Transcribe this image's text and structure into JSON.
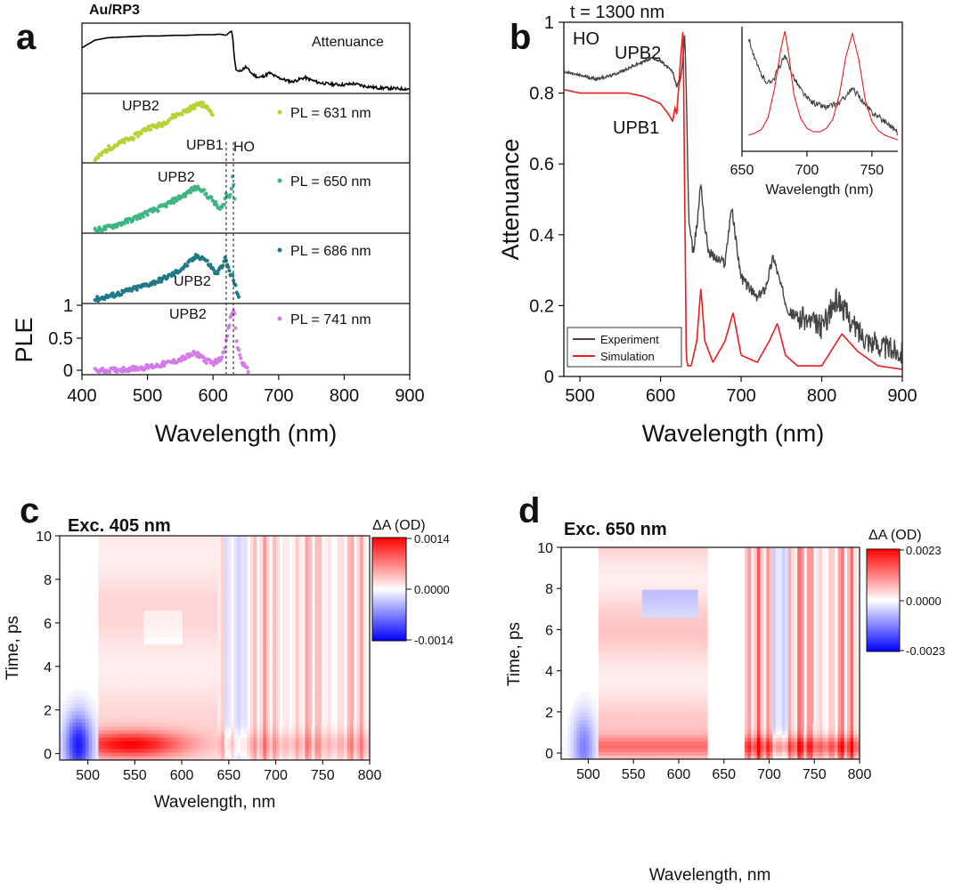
{
  "chart_data": [
    {
      "panel": "a",
      "type": "scatter",
      "title": "Au/RP3",
      "xlabel": "Wavelength (nm)",
      "ylabel": "PLE",
      "xlim": [
        400,
        900
      ],
      "xticks": [
        "400",
        "500",
        "600",
        "700",
        "800",
        "900"
      ],
      "yticks_bottom": [
        "0",
        "0.5",
        "1"
      ],
      "colors": {
        "attenuance": "#000000",
        "pl631": "#b5d334",
        "pl650": "#3eb582",
        "pl686": "#1f7a84",
        "pl741": "#d37be8"
      },
      "series": [
        {
          "name": "Attenuance",
          "label": "Attenuance",
          "x": [
            400,
            420,
            440,
            460,
            480,
            500,
            520,
            540,
            560,
            580,
            600,
            610,
            620,
            625,
            628,
            630,
            632,
            635,
            640,
            650,
            660,
            670,
            680,
            686,
            695,
            710,
            720,
            740,
            760,
            780,
            800,
            815,
            830,
            850,
            870,
            900
          ],
          "y": [
            0.72,
            0.85,
            0.89,
            0.9,
            0.91,
            0.92,
            0.92,
            0.93,
            0.93,
            0.94,
            0.94,
            0.95,
            0.93,
            0.98,
            1.0,
            0.9,
            0.6,
            0.35,
            0.32,
            0.4,
            0.28,
            0.22,
            0.26,
            0.3,
            0.24,
            0.18,
            0.15,
            0.22,
            0.14,
            0.11,
            0.1,
            0.12,
            0.08,
            0.05,
            0.04,
            0.03
          ]
        },
        {
          "name": "PL = 631 nm",
          "label": "PL = 631 nm",
          "annotation": "UPB2",
          "x": [
            420,
            440,
            460,
            480,
            500,
            520,
            540,
            555,
            565,
            575,
            580,
            590,
            600
          ],
          "y": [
            0.0,
            0.2,
            0.3,
            0.4,
            0.55,
            0.6,
            0.75,
            0.82,
            0.88,
            0.93,
            0.98,
            0.9,
            0.8
          ]
        },
        {
          "name": "PL = 650 nm",
          "label": "PL = 650 nm",
          "annotations": [
            "UPB2",
            "UPB1",
            "HO"
          ],
          "x": [
            420,
            440,
            460,
            480,
            500,
            520,
            540,
            560,
            570,
            580,
            590,
            600,
            610,
            615,
            620,
            625,
            628,
            630,
            633
          ],
          "y": [
            0.0,
            0.05,
            0.12,
            0.2,
            0.3,
            0.38,
            0.5,
            0.62,
            0.7,
            0.72,
            0.6,
            0.5,
            0.35,
            0.4,
            0.6,
            0.55,
            0.7,
            1.0,
            0.5
          ]
        },
        {
          "name": "PL = 686 nm",
          "label": "PL = 686 nm",
          "annotation": "UPB2",
          "x": [
            420,
            450,
            480,
            500,
            520,
            540,
            560,
            575,
            585,
            595,
            605,
            612,
            618,
            622,
            626,
            630,
            635,
            640
          ],
          "y": [
            0.02,
            0.1,
            0.2,
            0.27,
            0.35,
            0.45,
            0.6,
            0.75,
            0.72,
            0.6,
            0.45,
            0.55,
            0.7,
            0.6,
            0.45,
            0.4,
            0.2,
            0.05
          ]
        },
        {
          "name": "PL = 741 nm",
          "label": "PL = 741 nm",
          "annotation": "UPB2",
          "x": [
            420,
            450,
            480,
            500,
            520,
            540,
            560,
            570,
            580,
            590,
            600,
            610,
            615,
            620,
            625,
            628,
            630,
            633,
            636,
            640,
            645,
            650,
            655
          ],
          "y": [
            0.02,
            0.03,
            0.06,
            0.08,
            0.12,
            0.17,
            0.25,
            0.3,
            0.28,
            0.18,
            0.15,
            0.2,
            0.3,
            0.5,
            0.8,
            0.95,
            1.0,
            0.95,
            0.5,
            0.3,
            0.15,
            0.05,
            0.02
          ]
        }
      ]
    },
    {
      "panel": "b",
      "type": "line",
      "title": "t = 1300 nm",
      "xlabel": "Wavelength (nm)",
      "ylabel": "Attenuance",
      "xlim": [
        480,
        900
      ],
      "ylim": [
        0,
        1
      ],
      "xticks": [
        "500",
        "600",
        "700",
        "800",
        "900"
      ],
      "yticks": [
        "0",
        "0.2",
        "0.4",
        "0.6",
        "0.8",
        "1"
      ],
      "annotations": [
        "UPB2",
        "UPB1",
        "HO"
      ],
      "legend": [
        "Experiment",
        "Simulation"
      ],
      "colors": {
        "experiment": "#444444",
        "simulation": "#ee1c1c"
      },
      "series": [
        {
          "name": "Experiment",
          "x": [
            480,
            500,
            520,
            540,
            560,
            580,
            590,
            600,
            610,
            615,
            620,
            625,
            628,
            630,
            632,
            635,
            640,
            645,
            650,
            655,
            660,
            670,
            680,
            688,
            695,
            700,
            720,
            730,
            740,
            750,
            760,
            780,
            800,
            820,
            840,
            860,
            880,
            900
          ],
          "y": [
            0.86,
            0.85,
            0.84,
            0.85,
            0.87,
            0.89,
            0.9,
            0.89,
            0.87,
            0.86,
            0.82,
            0.84,
            0.9,
            0.97,
            0.8,
            0.45,
            0.35,
            0.42,
            0.55,
            0.42,
            0.35,
            0.33,
            0.32,
            0.48,
            0.36,
            0.28,
            0.22,
            0.25,
            0.34,
            0.25,
            0.18,
            0.16,
            0.14,
            0.22,
            0.14,
            0.1,
            0.08,
            0.07
          ]
        },
        {
          "name": "Simulation",
          "x": [
            480,
            500,
            520,
            540,
            560,
            580,
            590,
            600,
            610,
            615,
            618,
            620,
            622,
            625,
            628,
            630,
            632,
            634,
            638,
            645,
            650,
            655,
            665,
            680,
            690,
            700,
            720,
            735,
            745,
            755,
            770,
            800,
            825,
            845,
            870,
            900
          ],
          "y": [
            0.81,
            0.8,
            0.8,
            0.8,
            0.8,
            0.79,
            0.78,
            0.77,
            0.74,
            0.72,
            0.76,
            0.74,
            0.8,
            0.9,
            0.98,
            0.5,
            0.05,
            0.03,
            0.03,
            0.1,
            0.25,
            0.1,
            0.04,
            0.1,
            0.18,
            0.06,
            0.04,
            0.1,
            0.15,
            0.06,
            0.03,
            0.03,
            0.12,
            0.07,
            0.03,
            0.02
          ]
        }
      ],
      "inset": {
        "xlabel": "Wavelength (nm)",
        "xlim": [
          650,
          770
        ],
        "xticks": [
          "650",
          "700",
          "750"
        ],
        "series": [
          {
            "name": "Experiment",
            "x": [
              655,
              660,
              665,
              670,
              675,
              680,
              683,
              686,
              690,
              695,
              700,
              705,
              710,
              715,
              720,
              725,
              730,
              735,
              740,
              745,
              750,
              755,
              760,
              765,
              770
            ],
            "y": [
              0.95,
              0.75,
              0.62,
              0.55,
              0.6,
              0.72,
              0.78,
              0.7,
              0.6,
              0.5,
              0.42,
              0.38,
              0.36,
              0.34,
              0.36,
              0.38,
              0.44,
              0.5,
              0.44,
              0.36,
              0.3,
              0.26,
              0.22,
              0.18,
              0.12
            ]
          },
          {
            "name": "Simulation",
            "x": [
              655,
              660,
              665,
              670,
              675,
              680,
              683,
              686,
              690,
              695,
              700,
              705,
              710,
              715,
              720,
              725,
              730,
              735,
              740,
              745,
              750,
              755,
              760,
              765,
              770
            ],
            "y": [
              0.1,
              0.12,
              0.15,
              0.25,
              0.5,
              0.85,
              1.0,
              0.8,
              0.45,
              0.25,
              0.16,
              0.13,
              0.13,
              0.16,
              0.24,
              0.45,
              0.78,
              0.98,
              0.75,
              0.4,
              0.22,
              0.14,
              0.1,
              0.08,
              0.06
            ]
          }
        ]
      }
    },
    {
      "panel": "c",
      "type": "heatmap",
      "title": "Exc. 405 nm",
      "xlabel": "Wavelength, nm",
      "ylabel": "Time, ps",
      "xlim": [
        470,
        800
      ],
      "ylim": [
        -0.3,
        10
      ],
      "xticks": [
        "500",
        "550",
        "600",
        "650",
        "700",
        "750",
        "800"
      ],
      "yticks": [
        "0",
        "2",
        "4",
        "6",
        "8",
        "10"
      ],
      "colorbar": {
        "label": "ΔA (OD)",
        "max": "0.0014",
        "mid": "0.0000",
        "min": "-0.0014"
      },
      "features": [
        {
          "x": 490,
          "t": 0.4,
          "sign": "negative"
        },
        {
          "x": 545,
          "t": 0.4,
          "sign": "positive"
        },
        {
          "x": 700,
          "t": 5,
          "sign": "positive stripes"
        }
      ]
    },
    {
      "panel": "d",
      "type": "heatmap",
      "title": "Exc. 650 nm",
      "xlabel": "Wavelength, nm",
      "ylabel": "Time, ps",
      "xlim": [
        470,
        800
      ],
      "ylim": [
        -0.3,
        10
      ],
      "xticks": [
        "500",
        "550",
        "600",
        "650",
        "700",
        "750",
        "800"
      ],
      "yticks": [
        "0",
        "2",
        "4",
        "6",
        "8",
        "10"
      ],
      "colorbar": {
        "label": "ΔA (OD)",
        "max": "0.0023",
        "mid": "0.0000",
        "min": "-0.0023"
      },
      "features": [
        {
          "x": 495,
          "t": 0.3,
          "sign": "negative"
        },
        {
          "x": 590,
          "t": 7.2,
          "sign": "negative"
        },
        {
          "x": 730,
          "t": 5,
          "sign": "positive stripes"
        }
      ]
    }
  ]
}
